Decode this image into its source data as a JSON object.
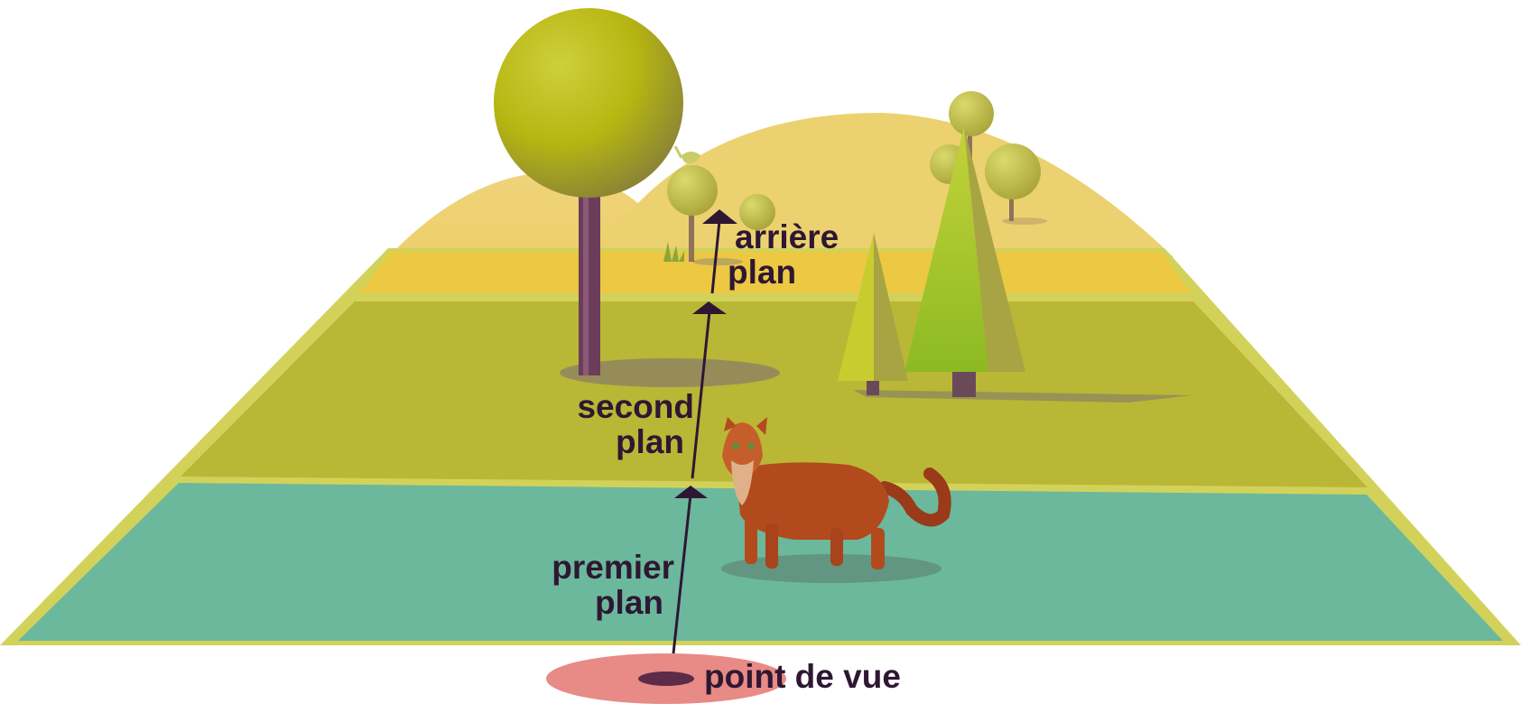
{
  "labels": {
    "background_line1": "arrière",
    "background_line2": "plan",
    "middleground_line1": "second",
    "middleground_line2": "plan",
    "foreground_line1": "premier",
    "foreground_line2": "plan",
    "viewpoint": "point de vue"
  },
  "colors": {
    "background_band": "#ecc843",
    "middleground_band": "#b9b735",
    "foreground_band": "#6bb89c",
    "border": "#d2d25a",
    "hills": "#efd37a",
    "viewpoint": "#e88a86",
    "arrow": "#2e1733",
    "cat": "#b34a1d"
  },
  "icons": [
    "round-tree-icon",
    "conifer-tree-icon",
    "bird-icon",
    "cat-icon",
    "grass-tuft-icon"
  ]
}
